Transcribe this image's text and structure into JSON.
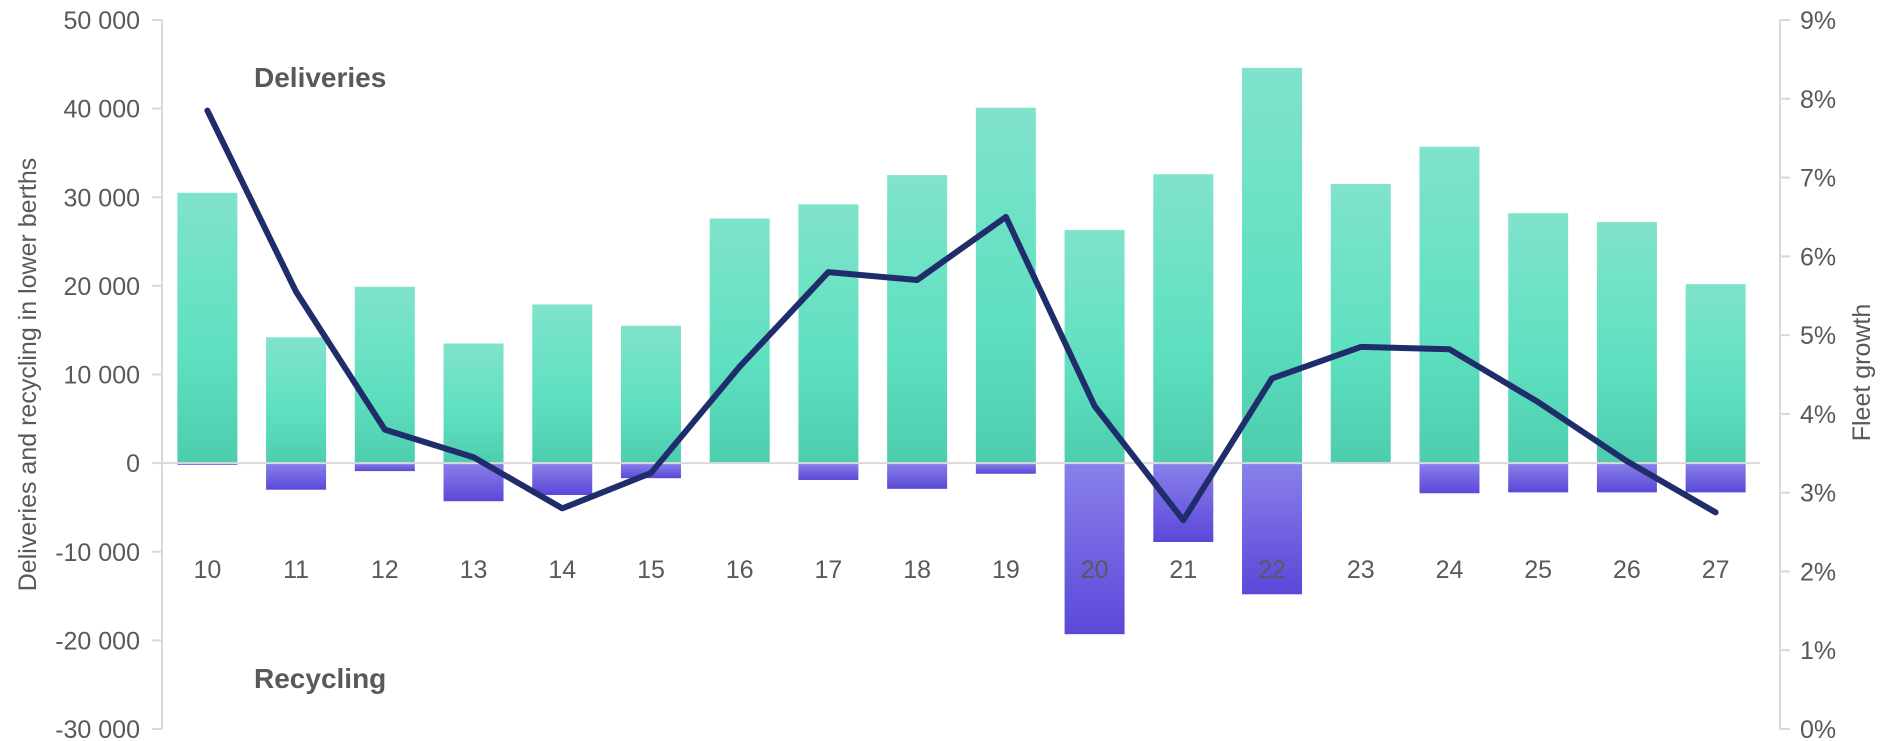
{
  "chart_data": {
    "type": "bar",
    "categories": [
      "10",
      "11",
      "12",
      "13",
      "14",
      "15",
      "16",
      "17",
      "18",
      "19",
      "20",
      "21",
      "22",
      "23",
      "24",
      "25",
      "26",
      "27"
    ],
    "series": [
      {
        "name": "Deliveries",
        "kind": "bar",
        "axis": "left",
        "color": "#5EE0C0",
        "values": [
          30500,
          14200,
          19900,
          13500,
          17900,
          15500,
          27600,
          29200,
          32500,
          40100,
          26300,
          32600,
          44600,
          31500,
          35700,
          28200,
          27200,
          20200
        ]
      },
      {
        "name": "Recycling",
        "kind": "bar",
        "axis": "left",
        "color": "#6A5AE0",
        "values": [
          -200,
          -3000,
          -900,
          -4300,
          -3600,
          -1700,
          0,
          -1900,
          -2900,
          -1200,
          -19300,
          -8900,
          -14800,
          0,
          -3400,
          -3300,
          -3300,
          -3300
        ]
      },
      {
        "name": "",
        "kind": "line",
        "axis": "right",
        "color": "#1F2D6B",
        "values": [
          7.85,
          5.55,
          3.8,
          3.45,
          2.8,
          3.25,
          4.6,
          5.8,
          5.7,
          6.5,
          4.1,
          2.65,
          4.45,
          4.85,
          4.82,
          4.15,
          3.4,
          2.75
        ]
      }
    ],
    "ylabel": "Deliveries and recycling in lower berths",
    "y2label": "Fleet growth",
    "ylim": [
      -30000,
      50000
    ],
    "y2lim": [
      0,
      9
    ],
    "yticks": [
      "-30 000",
      "-20 000",
      "-10 000",
      "0",
      "10 000",
      "20 000",
      "30 000",
      "40 000",
      "50 000"
    ],
    "y2ticks": [
      "0%",
      "1%",
      "2%",
      "3%",
      "4%",
      "5%",
      "6%",
      "7%",
      "8%",
      "9%"
    ],
    "annotations": [
      {
        "text": "Deliveries",
        "position": "top-left"
      },
      {
        "text": "Recycling",
        "position": "bottom-left"
      }
    ],
    "grid": false,
    "legend": "none"
  }
}
